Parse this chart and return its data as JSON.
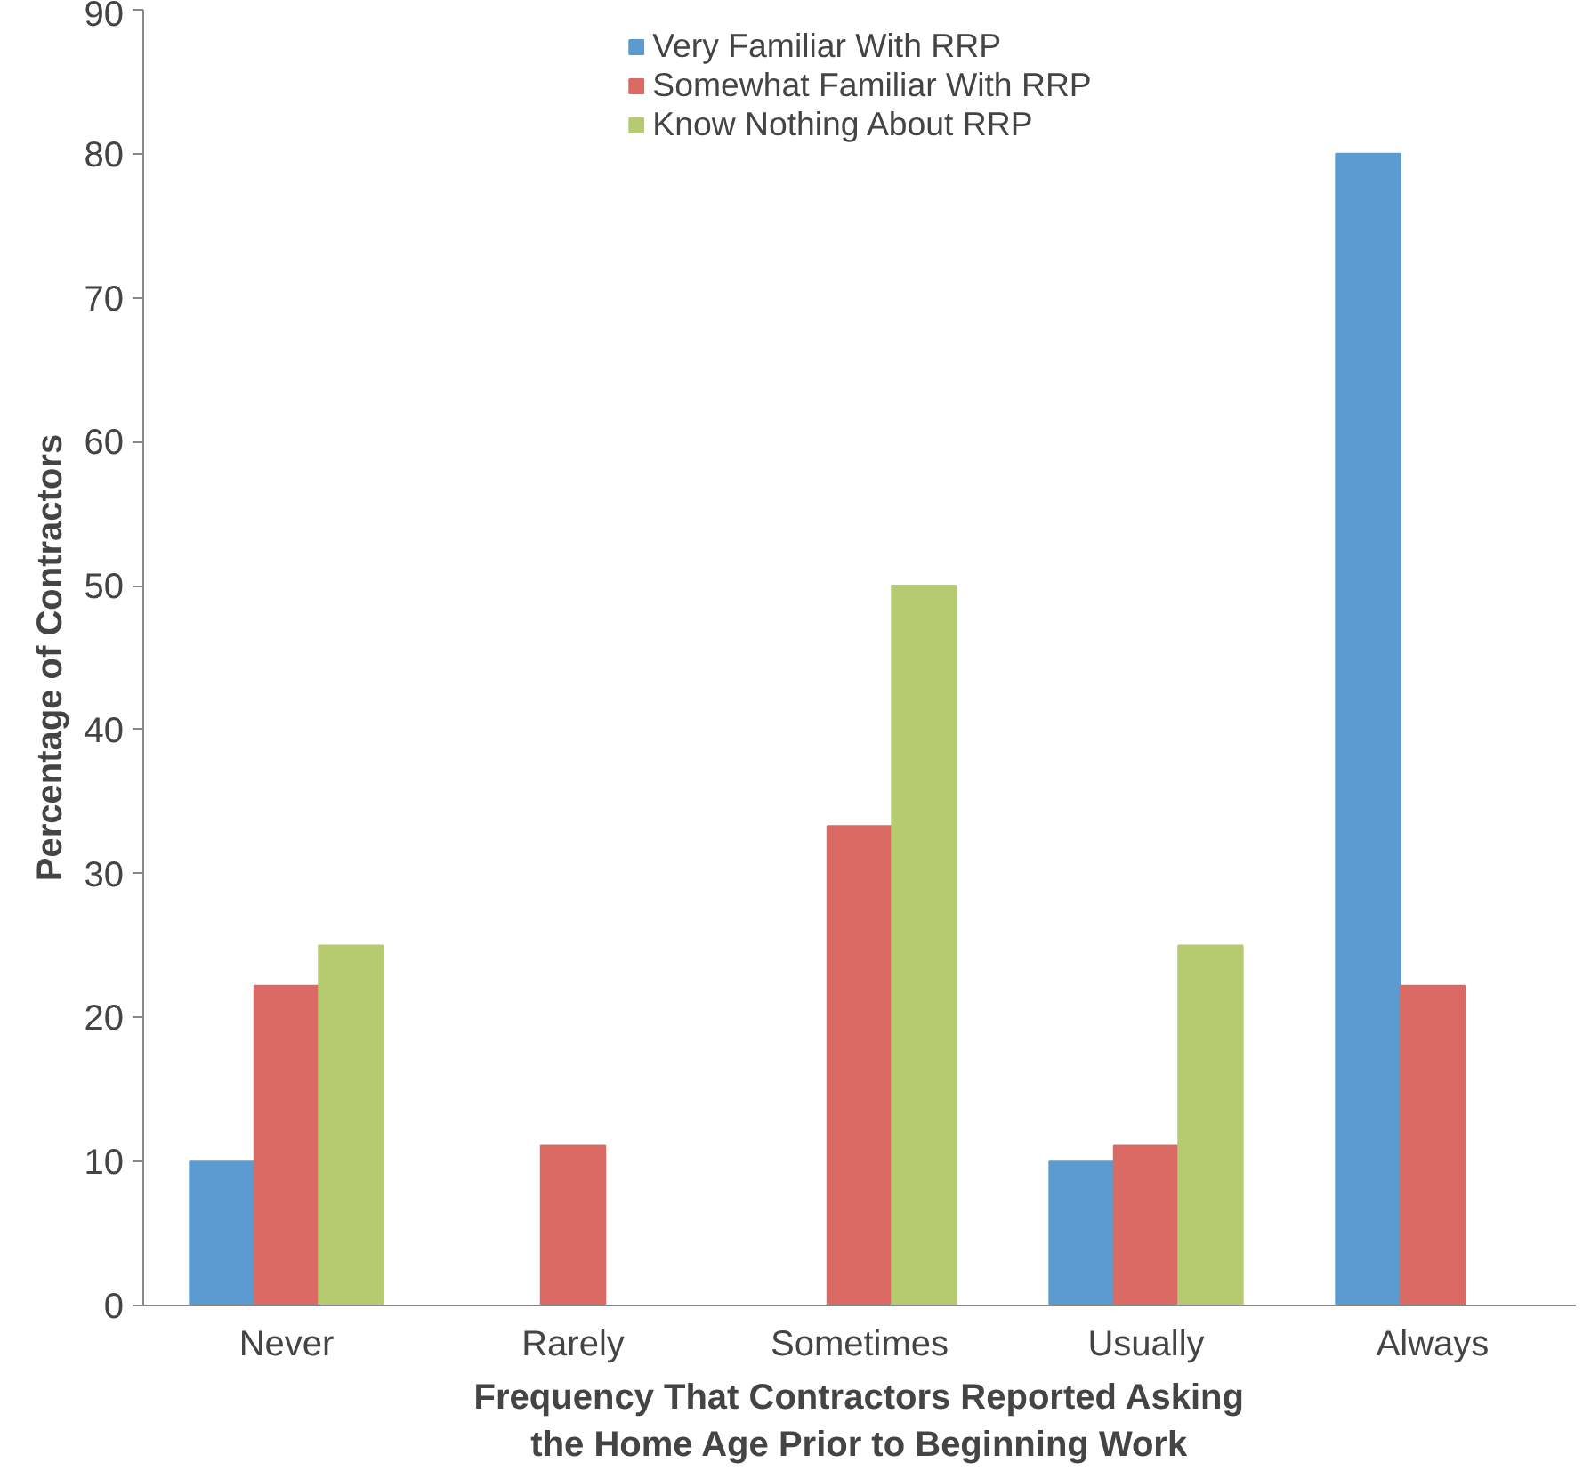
{
  "chart_data": {
    "type": "bar",
    "xlabel": "Frequency That Contractors Reported Asking\nthe Home Age Prior to Beginning Work",
    "ylabel": "Percentage of Contractors",
    "categories": [
      "Never",
      "Rarely",
      "Sometimes",
      "Usually",
      "Always"
    ],
    "series": [
      {
        "name": "Very Familiar With RRP",
        "color": "#5b9bd0",
        "values": [
          10,
          0,
          0,
          10,
          80
        ]
      },
      {
        "name": "Somewhat Familiar With RRP",
        "color": "#da6a63",
        "values": [
          22.2,
          11.1,
          33.3,
          11.1,
          22.2
        ]
      },
      {
        "name": "Know Nothing About RRP",
        "color": "#b6ca70",
        "values": [
          25,
          0,
          50,
          25,
          0
        ]
      }
    ],
    "ylim": [
      0,
      90
    ],
    "yticks": [
      0,
      10,
      20,
      30,
      40,
      50,
      60,
      70,
      80,
      90
    ],
    "grid": false,
    "legend": "top"
  }
}
